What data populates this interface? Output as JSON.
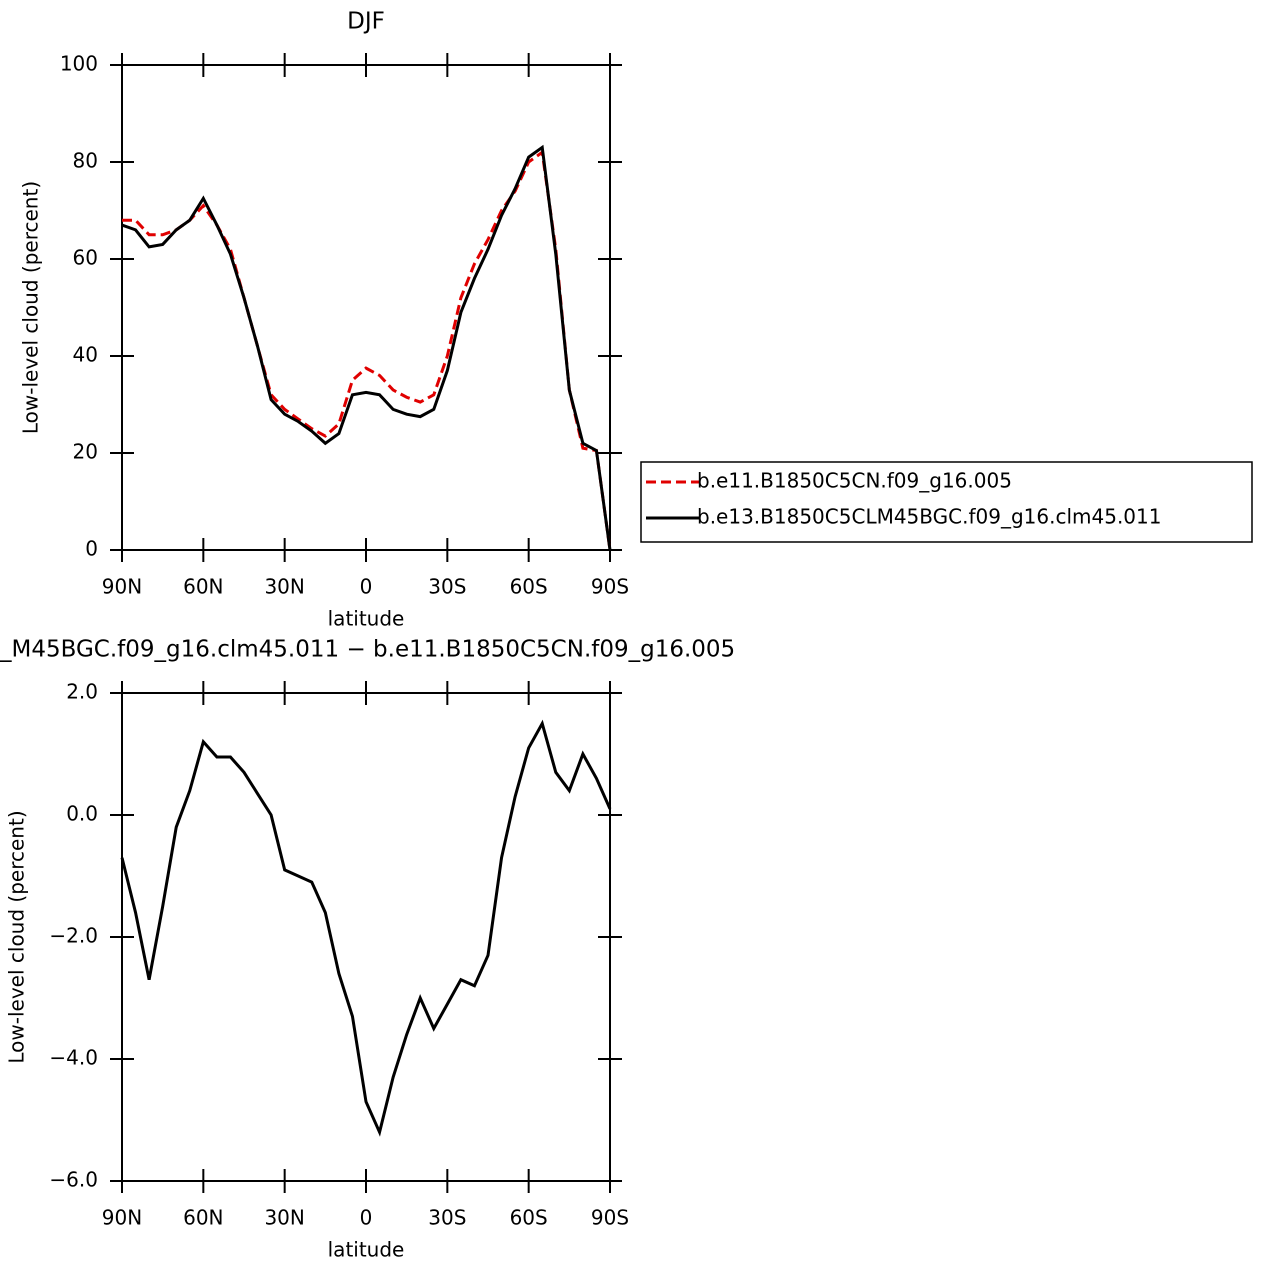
{
  "chart_data": [
    {
      "type": "line",
      "title": "DJF",
      "xlabel": "latitude",
      "ylabel": "Low-level cloud (percent)",
      "x": [
        90,
        85,
        80,
        75,
        70,
        65,
        60,
        55,
        50,
        45,
        40,
        35,
        30,
        25,
        20,
        15,
        10,
        5,
        0,
        -5,
        -10,
        -15,
        -20,
        -25,
        -30,
        -35,
        -40,
        -45,
        -50,
        -55,
        -60,
        -65,
        -70,
        -75,
        -80,
        -85,
        -90
      ],
      "xlim": [
        90,
        -90
      ],
      "xticks": [
        {
          "value": 90,
          "label": "90N"
        },
        {
          "value": 60,
          "label": "60N"
        },
        {
          "value": 30,
          "label": "30N"
        },
        0,
        {
          "value": -30,
          "label": "30S"
        },
        {
          "value": -60,
          "label": "60S"
        },
        {
          "value": -90,
          "label": "90S"
        }
      ],
      "ylim": [
        0,
        100
      ],
      "yticks": [
        0,
        20,
        40,
        60,
        80,
        100
      ],
      "series": [
        {
          "name": "b.e11.B1850C5CN.f09_g16.005",
          "color": "#e00000",
          "dash": true,
          "values": [
            68,
            68,
            65,
            65,
            66,
            68,
            71,
            67,
            62,
            52,
            42,
            32,
            29,
            27,
            25,
            23.5,
            26,
            35,
            37.5,
            36,
            33,
            31.5,
            30.5,
            32,
            40,
            52,
            59,
            64,
            70,
            74,
            80,
            82,
            62,
            33,
            21,
            20.5,
            0
          ]
        },
        {
          "name": "b.e13.B1850C5CLM45BGC.f09_g16.clm45.011",
          "color": "#000000",
          "dash": false,
          "values": [
            67,
            66,
            62.5,
            63,
            66,
            68,
            72.5,
            67,
            61,
            52,
            42,
            31,
            28,
            26.5,
            24.5,
            22,
            24,
            32,
            32.5,
            32,
            29,
            28,
            27.5,
            29,
            37,
            49,
            56,
            62,
            69,
            74.5,
            81,
            83,
            61,
            33,
            22,
            20.5,
            0
          ]
        }
      ]
    },
    {
      "type": "line",
      "title": "_M45BGC.f09_g16.clm45.011 − b.e11.B1850C5CN.f09_g16.005",
      "xlabel": "latitude",
      "ylabel": "Low-level cloud (percent)",
      "x": [
        90,
        85,
        80,
        75,
        70,
        65,
        60,
        55,
        50,
        45,
        40,
        35,
        30,
        25,
        20,
        15,
        10,
        5,
        0,
        -5,
        -10,
        -15,
        -20,
        -25,
        -30,
        -35,
        -40,
        -45,
        -50,
        -55,
        -60,
        -65,
        -70,
        -75,
        -80,
        -85,
        -90
      ],
      "xlim": [
        90,
        -90
      ],
      "xticks": [
        {
          "value": 90,
          "label": "90N"
        },
        {
          "value": 60,
          "label": "60N"
        },
        {
          "value": 30,
          "label": "30N"
        },
        0,
        {
          "value": -30,
          "label": "30S"
        },
        {
          "value": -60,
          "label": "60S"
        },
        {
          "value": -90,
          "label": "90S"
        }
      ],
      "ylim": [
        -6,
        2
      ],
      "yticks": [
        {
          "value": -6,
          "label": "−6.0"
        },
        {
          "value": -4,
          "label": "−4.0"
        },
        {
          "value": -2,
          "label": "−2.0"
        },
        {
          "value": 0,
          "label": "0.0"
        },
        {
          "value": 2,
          "label": "2.0"
        }
      ],
      "series": [
        {
          "color": "#000000",
          "dash": false,
          "values": [
            -0.7,
            -1.6,
            -2.7,
            -1.5,
            -0.2,
            0.4,
            1.2,
            0.95,
            0.95,
            0.7,
            0.35,
            0.0,
            -0.9,
            -1.0,
            -1.1,
            -1.6,
            -2.6,
            -3.3,
            -4.7,
            -5.2,
            -4.3,
            -3.6,
            -3.0,
            -3.5,
            -3.1,
            -2.7,
            -2.8,
            -2.3,
            -0.7,
            0.3,
            1.1,
            1.5,
            0.7,
            0.4,
            1.0,
            0.6,
            0.1
          ]
        }
      ]
    }
  ]
}
